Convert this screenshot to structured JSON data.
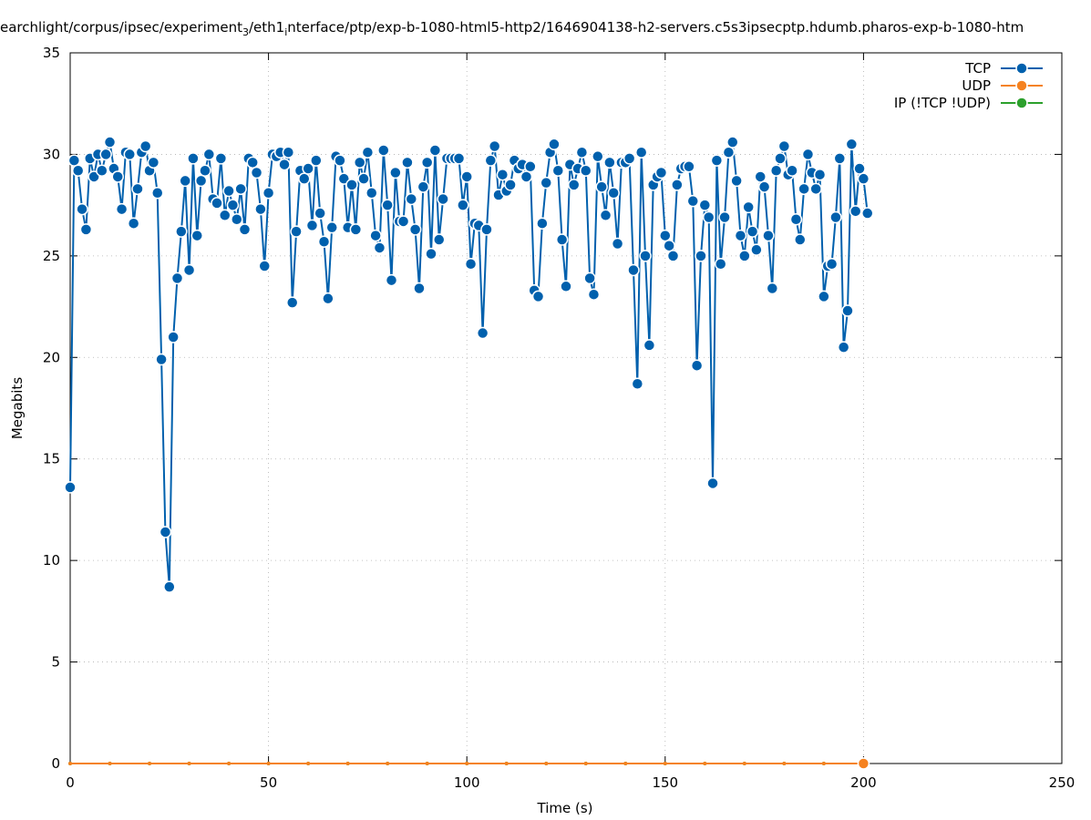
{
  "chart_data": {
    "type": "line",
    "title_parts": [
      "earchlight/corpus/ipsec/experiment",
      "3",
      "/eth1",
      "i",
      "nterface/ptp/exp-b-1080-html5-http2/1646904138-h2-servers.c5s3ipsecptp.hdumb.pharos-exp-b-1080-htm"
    ],
    "x_label": "Time (s)",
    "y_label": "Megabits",
    "xlim": [
      0,
      250
    ],
    "xticks": [
      0,
      50,
      100,
      150,
      200,
      250
    ],
    "ylim": [
      0,
      35
    ],
    "yticks": [
      0,
      5,
      10,
      15,
      20,
      25,
      30,
      35
    ],
    "grid": true,
    "legend": "top-right",
    "series": [
      {
        "name": "TCP",
        "color": "#0060ad",
        "x": [
          0,
          1,
          2,
          3,
          4,
          5,
          6,
          7,
          8,
          9,
          10,
          11,
          12,
          13,
          14,
          15,
          16,
          17,
          18,
          19,
          20,
          21,
          22,
          23,
          24,
          25,
          26,
          27,
          28,
          29,
          30,
          31,
          32,
          33,
          34,
          35,
          36,
          37,
          38,
          39,
          40,
          41,
          42,
          43,
          44,
          45,
          46,
          47,
          48,
          49,
          50,
          51,
          52,
          53,
          54,
          55,
          56,
          57,
          58,
          59,
          60,
          61,
          62,
          63,
          64,
          65,
          66,
          67,
          68,
          69,
          70,
          71,
          72,
          73,
          74,
          75,
          76,
          77,
          78,
          79,
          80,
          81,
          82,
          83,
          84,
          85,
          86,
          87,
          88,
          89,
          90,
          91,
          92,
          93,
          94,
          95,
          96,
          97,
          98,
          99,
          100,
          101,
          102,
          103,
          104,
          105,
          106,
          107,
          108,
          109,
          110,
          111,
          112,
          113,
          114,
          115,
          116,
          117,
          118,
          119,
          120,
          121,
          122,
          123,
          124,
          125,
          126,
          127,
          128,
          129,
          130,
          131,
          132,
          133,
          134,
          135,
          136,
          137,
          138,
          139,
          140,
          141,
          142,
          143,
          144,
          145,
          146,
          147,
          148,
          149,
          150,
          151,
          152,
          153,
          154,
          155,
          156,
          157,
          158,
          159,
          160,
          161,
          162,
          163,
          164,
          165,
          166,
          167,
          168,
          169,
          170,
          171,
          172,
          173,
          174,
          175,
          176,
          177,
          178,
          179,
          180,
          181,
          182,
          183,
          184,
          185,
          186,
          187,
          188,
          189,
          190,
          191,
          192,
          193,
          194,
          195,
          196,
          197,
          198,
          199,
          200,
          201
        ],
        "values": [
          13.6,
          29.7,
          29.2,
          27.3,
          26.3,
          29.8,
          28.9,
          30.0,
          29.2,
          30.0,
          30.6,
          29.3,
          28.9,
          27.3,
          30.1,
          30.0,
          26.6,
          28.3,
          30.1,
          30.4,
          29.2,
          29.6,
          28.1,
          19.9,
          11.4,
          8.7,
          21.0,
          23.9,
          26.2,
          28.7,
          24.3,
          29.8,
          26.0,
          28.7,
          29.2,
          30.0,
          27.8,
          27.6,
          29.8,
          27.0,
          28.2,
          27.5,
          26.8,
          28.3,
          26.3,
          29.8,
          29.6,
          29.1,
          27.3,
          24.5,
          28.1,
          30.0,
          29.9,
          30.1,
          29.5,
          30.1,
          22.7,
          26.2,
          29.2,
          28.8,
          29.3,
          26.5,
          29.7,
          27.1,
          25.7,
          22.9,
          26.4,
          29.9,
          29.7,
          28.8,
          26.4,
          28.5,
          26.3,
          29.6,
          28.8,
          30.1,
          28.1,
          26.0,
          25.4,
          30.2,
          27.5,
          23.8,
          29.1,
          26.7,
          26.7,
          29.6,
          27.8,
          26.3,
          23.4,
          28.4,
          29.6,
          25.1,
          30.2,
          25.8,
          27.8,
          29.8,
          29.8,
          29.8,
          29.8,
          27.5,
          28.9,
          24.6,
          26.6,
          26.5,
          21.2,
          26.3,
          29.7,
          30.4,
          28.0,
          29.0,
          28.2,
          28.5,
          29.7,
          29.3,
          29.5,
          28.9,
          29.4,
          23.3,
          23.0,
          26.6,
          28.6,
          30.1,
          30.5,
          29.2,
          25.8,
          23.5,
          29.5,
          28.5,
          29.3,
          30.1,
          29.2,
          23.9,
          23.1,
          29.9,
          28.4,
          27.0,
          29.6,
          28.1,
          25.6,
          29.6,
          29.6,
          29.8,
          24.3,
          18.7,
          30.1,
          25.0,
          20.6,
          28.5,
          28.9,
          29.1,
          26.0,
          25.5,
          25.0,
          28.5,
          29.3,
          29.4,
          29.4,
          27.7,
          19.6,
          25.0,
          27.5,
          26.9,
          13.8,
          29.7,
          24.6,
          26.9,
          30.1,
          30.6,
          28.7,
          26.0,
          25.0,
          27.4,
          26.2,
          25.3,
          28.9,
          28.4,
          26.0,
          23.4,
          29.2,
          29.8,
          30.4,
          29.0,
          29.2,
          26.8,
          25.8,
          28.3,
          30.0,
          29.1,
          28.3,
          29.0,
          23.0,
          24.5,
          24.6,
          26.9,
          29.8,
          20.5,
          22.3,
          30.5,
          27.2,
          29.3,
          28.8,
          27.1
        ]
      },
      {
        "name": "UDP",
        "color": "#f58220",
        "x": [
          0,
          10,
          20,
          30,
          40,
          50,
          60,
          70,
          80,
          90,
          100,
          110,
          120,
          130,
          140,
          150,
          160,
          170,
          180,
          190,
          200
        ],
        "values": [
          0,
          0,
          0,
          0,
          0,
          0,
          0,
          0,
          0,
          0,
          0,
          0,
          0,
          0,
          0,
          0,
          0,
          0,
          0,
          0,
          0
        ]
      },
      {
        "name": "IP (!TCP  !UDP)",
        "color": "#2ca02c",
        "x": [
          0,
          10,
          20,
          30,
          40,
          50,
          60,
          70,
          80,
          90,
          100,
          110,
          120,
          130,
          140,
          150,
          160,
          170,
          180,
          190,
          200
        ],
        "values": [
          0,
          0,
          0,
          0,
          0,
          0,
          0,
          0,
          0,
          0,
          0,
          0,
          0,
          0,
          0,
          0,
          0,
          0,
          0,
          0,
          0
        ]
      }
    ]
  }
}
